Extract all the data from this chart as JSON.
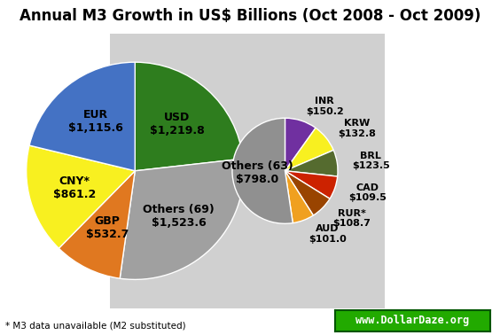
{
  "title": "Annual M3 Growth in US$ Billions (Oct 2008 - Oct 2009)",
  "footnote": "* M3 data unavailable (M2 substituted)",
  "watermark": "www.DollarDaze.org",
  "big_pie": {
    "labels": [
      "USD\n$1,219.8",
      "Others (69)\n$1,523.6",
      "GBP\n$532.7",
      "CNY*\n$861.2",
      "EUR\n$1,115.6"
    ],
    "values": [
      1219.8,
      1523.6,
      532.7,
      861.2,
      1115.6
    ],
    "colors": [
      "#2e7d1e",
      "#a0a0a0",
      "#e07820",
      "#f8f020",
      "#4472c4"
    ],
    "startangle": 90
  },
  "small_pie": {
    "labels": [
      "INR\n$150.2",
      "KRW\n$132.8",
      "BRL\n$123.5",
      "CAD\n$109.5",
      "RUR*\n$108.7",
      "AUD\n$101.0",
      "Others (63)\n$798.0"
    ],
    "values": [
      150.2,
      132.8,
      123.5,
      109.5,
      108.7,
      101.0,
      798.0
    ],
    "colors": [
      "#7030a0",
      "#f8f020",
      "#556b2f",
      "#cc2200",
      "#994400",
      "#f0a020",
      "#909090"
    ],
    "startangle": 90
  },
  "background_color": "#ffffff",
  "shadow_color": "#d0d0d0",
  "title_fontsize": 12,
  "label_fontsize_big": 9,
  "label_fontsize_small": 8
}
